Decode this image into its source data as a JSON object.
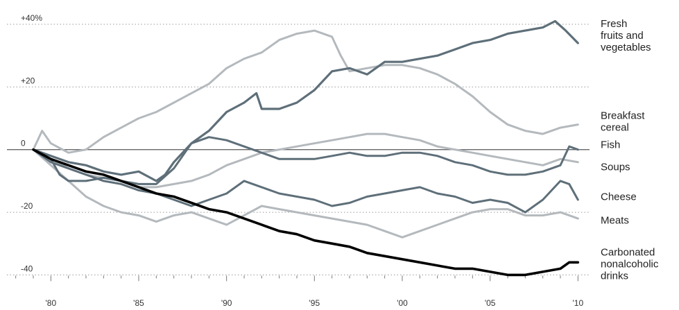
{
  "chart_data": {
    "type": "line",
    "title": "",
    "xlabel": "",
    "ylabel": "",
    "xlim": [
      1977.5,
      2010.5
    ],
    "ylim": [
      -45,
      42
    ],
    "y_ticks": [
      {
        "value": 40,
        "label": "+40%"
      },
      {
        "value": 20,
        "label": "+20"
      },
      {
        "value": 0,
        "label": "0"
      },
      {
        "value": -20,
        "label": "-20"
      },
      {
        "value": -40,
        "label": "-40"
      }
    ],
    "x_ticks": [
      {
        "value": 1980,
        "label": "'80"
      },
      {
        "value": 1985,
        "label": "'85"
      },
      {
        "value": 1990,
        "label": "'90"
      },
      {
        "value": 1995,
        "label": "'95"
      },
      {
        "value": 2000,
        "label": "'00"
      },
      {
        "value": 2005,
        "label": "'05"
      },
      {
        "value": 2010,
        "label": "'10"
      }
    ],
    "grid": "dotted-horizontal",
    "colors": {
      "light": "#b4b9bd",
      "mid": "#5e6f79",
      "dark": "#000000",
      "zero_line": "#555555",
      "grid": "#999999"
    },
    "series": [
      {
        "name": "Fresh fruits and vegetables",
        "label_lines": [
          "Fresh",
          "fruits and",
          "vegetables"
        ],
        "label_y": 36.5,
        "tone": "mid",
        "width": 3.2,
        "x": [
          1979,
          1979.5,
          1980,
          1981,
          1982,
          1983,
          1984,
          1985,
          1986,
          1986.5,
          1987,
          1988,
          1989,
          1990,
          1991,
          1991.7,
          1992,
          1993,
          1994,
          1995,
          1996,
          1997,
          1998,
          1999,
          2000,
          2001,
          2002,
          2003,
          2004,
          2005,
          2006,
          2007,
          2008,
          2008.7,
          2009.3,
          2010
        ],
        "y": [
          0,
          -1,
          -2,
          -4,
          -5,
          -7,
          -8,
          -7,
          -10,
          -8,
          -4,
          2,
          6,
          12,
          15,
          18,
          13,
          13,
          15,
          19,
          25,
          26,
          24,
          28,
          28,
          29,
          30,
          32,
          34,
          35,
          37,
          38,
          39,
          41,
          38,
          34
        ]
      },
      {
        "name": "Breakfast cereal",
        "label_lines": [
          "Breakfast",
          "cereal"
        ],
        "label_y": 9,
        "tone": "light",
        "width": 3,
        "x": [
          1979,
          1979.5,
          1980,
          1981,
          1982,
          1983,
          1984,
          1985,
          1986,
          1987,
          1988,
          1989,
          1990,
          1991,
          1992,
          1993,
          1994,
          1995,
          1996,
          1996.5,
          1997,
          1998,
          1999,
          2000,
          2001,
          2002,
          2003,
          2004,
          2005,
          2006,
          2007,
          2008,
          2009,
          2010
        ],
        "y": [
          0,
          6,
          2,
          -1,
          0,
          4,
          7,
          10,
          12,
          15,
          18,
          21,
          26,
          29,
          31,
          35,
          37,
          38,
          36,
          30,
          25,
          26,
          27,
          27,
          26,
          24,
          21,
          17,
          12,
          8,
          6,
          5,
          7,
          8
        ]
      },
      {
        "name": "Fish",
        "label_lines": [
          "Fish"
        ],
        "label_y": 1.6,
        "tone": "mid",
        "width": 3,
        "x": [
          1979,
          1980,
          1980.5,
          1981,
          1982,
          1983,
          1984,
          1985,
          1986,
          1987,
          1987.5,
          1988,
          1989,
          1990,
          1991,
          1992,
          1993,
          1994,
          1995,
          1996,
          1997,
          1998,
          1999,
          2000,
          2001,
          2002,
          2003,
          2004,
          2005,
          2006,
          2007,
          2008,
          2009,
          2009.5,
          2010
        ],
        "y": [
          0,
          -3,
          -8,
          -10,
          -10,
          -9,
          -10,
          -11,
          -11,
          -6,
          -2,
          2,
          4,
          3,
          1,
          -1,
          -3,
          -3,
          -3,
          -2,
          -1,
          -2,
          -2,
          -1,
          -1,
          -2,
          -4,
          -5,
          -7,
          -8,
          -8,
          -7,
          -5,
          1,
          0
        ]
      },
      {
        "name": "Soups",
        "label_lines": [
          "Soups"
        ],
        "label_y": -5.5,
        "tone": "light",
        "width": 3,
        "x": [
          1979,
          1980,
          1981,
          1982,
          1983,
          1984,
          1985,
          1986,
          1987,
          1988,
          1989,
          1990,
          1991,
          1992,
          1993,
          1994,
          1995,
          1996,
          1997,
          1998,
          1999,
          2000,
          2001,
          2002,
          2003,
          2004,
          2005,
          2006,
          2007,
          2008,
          2009,
          2010
        ],
        "y": [
          0,
          -3,
          -6,
          -8,
          -9,
          -10,
          -12,
          -12,
          -11,
          -10,
          -8,
          -5,
          -3,
          -1,
          0,
          1,
          2,
          3,
          4,
          5,
          5,
          4,
          3,
          1,
          0,
          -1,
          -2,
          -3,
          -4,
          -5,
          -3,
          -4
        ]
      },
      {
        "name": "Cheese",
        "label_lines": [
          "Cheese"
        ],
        "label_y": -15,
        "tone": "mid",
        "width": 3,
        "x": [
          1979,
          1980,
          1981,
          1982,
          1983,
          1984,
          1985,
          1986,
          1987,
          1988,
          1989,
          1990,
          1991,
          1992,
          1993,
          1994,
          1995,
          1996,
          1997,
          1998,
          1999,
          2000,
          2001,
          2002,
          2003,
          2004,
          2005,
          2006,
          2007,
          2008,
          2009,
          2009.5,
          2010
        ],
        "y": [
          0,
          -4,
          -6,
          -8,
          -10,
          -11,
          -13,
          -14,
          -16,
          -18,
          -16,
          -14,
          -10,
          -12,
          -14,
          -15,
          -16,
          -18,
          -17,
          -15,
          -14,
          -13,
          -12,
          -14,
          -15,
          -17,
          -16,
          -17,
          -20,
          -16,
          -10,
          -11,
          -16
        ]
      },
      {
        "name": "Meats",
        "label_lines": [
          "Meats"
        ],
        "label_y": -22.5,
        "tone": "light",
        "width": 3,
        "x": [
          1979,
          1980,
          1981,
          1982,
          1983,
          1984,
          1985,
          1986,
          1987,
          1988,
          1989,
          1990,
          1991,
          1992,
          1993,
          1994,
          1995,
          1996,
          1997,
          1998,
          1999,
          2000,
          2001,
          2002,
          2003,
          2004,
          2005,
          2006,
          2007,
          2008,
          2009,
          2010
        ],
        "y": [
          0,
          -5,
          -10,
          -15,
          -18,
          -20,
          -21,
          -23,
          -21,
          -20,
          -22,
          -24,
          -21,
          -18,
          -19,
          -20,
          -21,
          -22,
          -23,
          -24,
          -26,
          -28,
          -26,
          -24,
          -22,
          -20,
          -19,
          -19,
          -21,
          -21,
          -20,
          -22
        ]
      },
      {
        "name": "Carbonated nonalcoholic drinks",
        "label_lines": [
          "Carbonated",
          "nonalcoholic",
          "drinks"
        ],
        "label_y": -36.5,
        "tone": "dark",
        "width": 3.6,
        "x": [
          1979,
          1980,
          1981,
          1982,
          1983,
          1984,
          1985,
          1986,
          1987,
          1988,
          1989,
          1990,
          1991,
          1992,
          1993,
          1994,
          1995,
          1996,
          1997,
          1998,
          1999,
          2000,
          2001,
          2002,
          2003,
          2004,
          2005,
          2006,
          2007,
          2008,
          2009,
          2009.5,
          2010
        ],
        "y": [
          0,
          -3,
          -5,
          -7,
          -8,
          -10,
          -12,
          -14,
          -15,
          -17,
          -19,
          -20,
          -22,
          -24,
          -26,
          -27,
          -29,
          -30,
          -31,
          -33,
          -34,
          -35,
          -36,
          -37,
          -38,
          -38,
          -39,
          -40,
          -40,
          -39,
          -38,
          -36,
          -36
        ]
      }
    ]
  }
}
